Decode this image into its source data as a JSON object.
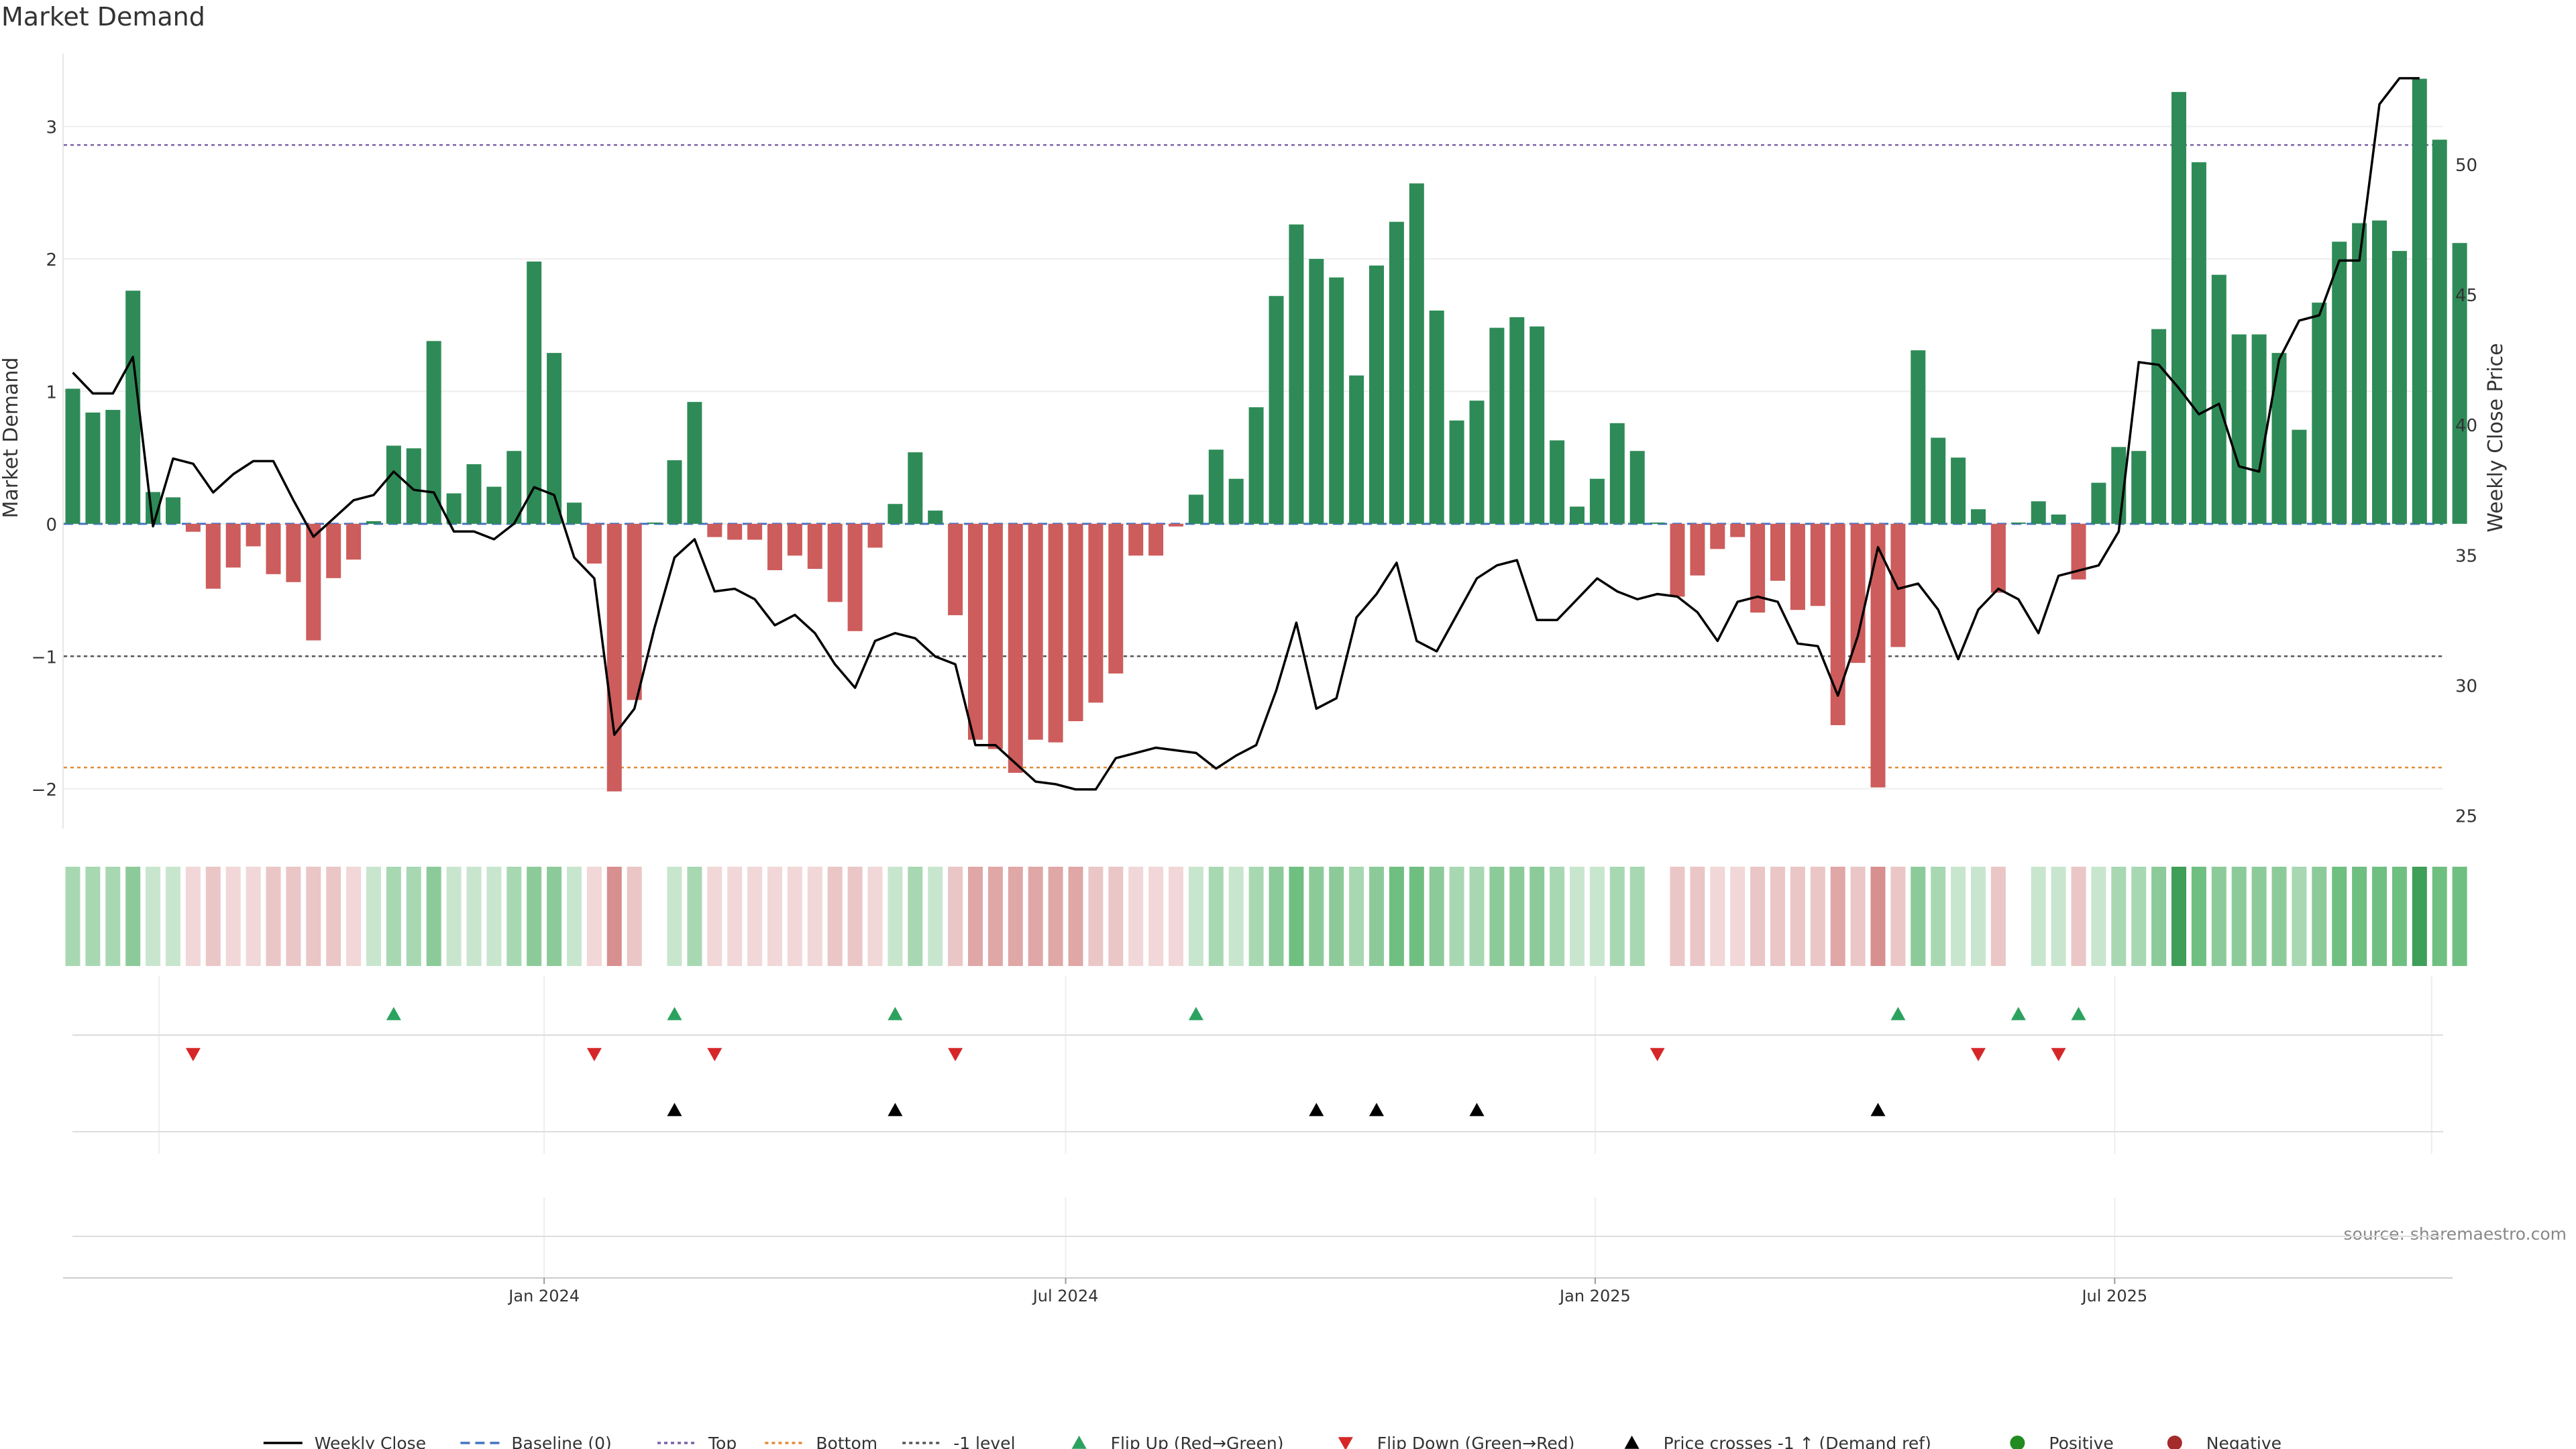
{
  "chart_data": {
    "type": "bar",
    "title": "Market Demand",
    "ylabel_left": "Market Demand",
    "ylabel_right": "Weekly Close Price",
    "source": "source: sharemaestro.com",
    "left_axis": {
      "ylim": [
        -2.3,
        3.6
      ],
      "ticks": [
        -2,
        -1,
        0,
        1,
        2,
        3
      ],
      "tick_labels": [
        "−2",
        "−1",
        "0",
        "1",
        "2",
        "3"
      ]
    },
    "right_axis": {
      "ylim": [
        24.5,
        54.5
      ],
      "ticks": [
        25,
        30,
        35,
        40,
        45,
        50
      ],
      "tick_labels": [
        "25",
        "30",
        "35",
        "40",
        "45",
        "50"
      ]
    },
    "reference_lines": {
      "top": 2.86,
      "bottom": -1.84,
      "minus_one": -1,
      "baseline": 0
    },
    "x_ticks": [
      {
        "label": "Jan 2024",
        "week": 23.5
      },
      {
        "label": "Jul 2024",
        "week": 49.5
      },
      {
        "label": "Jan 2025",
        "week": 75.9
      },
      {
        "label": "Jul 2025",
        "week": 101.8
      }
    ],
    "demand": [
      1.02,
      0.84,
      0.86,
      1.76,
      0.24,
      0.2,
      -0.06,
      -0.49,
      -0.33,
      -0.17,
      -0.38,
      -0.44,
      -0.88,
      -0.41,
      -0.27,
      0.02,
      0.59,
      0.57,
      1.38,
      0.23,
      0.45,
      0.28,
      0.55,
      1.98,
      1.29,
      0.16,
      -0.3,
      -2.02,
      -1.33,
      0.01,
      0.48,
      0.92,
      -0.1,
      -0.12,
      -0.12,
      -0.35,
      -0.24,
      -0.34,
      -0.59,
      -0.81,
      -0.18,
      0.15,
      0.54,
      0.1,
      -0.69,
      -1.63,
      -1.7,
      -1.88,
      -1.63,
      -1.65,
      -1.49,
      -1.35,
      -1.13,
      -0.24,
      -0.24,
      -0.02,
      0.22,
      0.56,
      0.34,
      0.88,
      1.72,
      2.26,
      2.0,
      1.86,
      1.12,
      1.95,
      2.28,
      2.57,
      1.61,
      0.78,
      0.93,
      1.48,
      1.56,
      1.49,
      0.63,
      0.13,
      0.34,
      0.76,
      0.55,
      0.01,
      -0.55,
      -0.39,
      -0.19,
      -0.1,
      -0.67,
      -0.43,
      -0.65,
      -0.62,
      -1.52,
      -1.05,
      -1.99,
      -0.93,
      1.31,
      0.65,
      0.5,
      0.11,
      -0.52,
      0.01,
      0.17,
      0.07,
      -0.42,
      0.31,
      0.58,
      0.55,
      1.47,
      3.26,
      2.73,
      1.88,
      1.43,
      1.43,
      1.29,
      0.71,
      1.67,
      2.13,
      2.27,
      2.29,
      2.06,
      3.36,
      2.9,
      2.12
    ],
    "weekly_close": [
      42.0,
      41.2,
      41.2,
      42.6,
      36.1,
      38.7,
      38.5,
      37.4,
      38.1,
      38.6,
      38.6,
      37.1,
      35.7,
      36.4,
      37.1,
      37.3,
      38.2,
      37.5,
      37.4,
      35.9,
      35.9,
      35.6,
      36.2,
      37.6,
      37.3,
      34.9,
      34.1,
      28.1,
      29.1,
      32.2,
      34.9,
      35.6,
      33.6,
      33.7,
      33.3,
      32.3,
      32.7,
      32.0,
      30.8,
      29.9,
      31.7,
      32.0,
      31.8,
      31.1,
      30.8,
      27.7,
      27.7,
      27.0,
      26.3,
      26.2,
      26.0,
      26.0,
      27.2,
      27.4,
      27.6,
      27.5,
      27.4,
      26.8,
      27.3,
      27.7,
      29.8,
      32.4,
      29.1,
      29.5,
      32.6,
      33.5,
      34.7,
      31.7,
      31.3,
      32.7,
      34.1,
      34.6,
      34.8,
      32.5,
      32.5,
      33.3,
      34.1,
      33.6,
      33.3,
      33.5,
      33.4,
      32.8,
      31.7,
      33.2,
      33.4,
      33.2,
      31.6,
      31.5,
      29.6,
      31.9,
      35.3,
      33.7,
      33.9,
      32.9,
      31.0,
      32.9,
      33.7,
      33.3,
      32.0,
      34.2,
      34.4,
      34.6,
      35.9,
      42.4,
      42.3,
      41.4,
      40.4,
      40.8,
      38.4,
      38.2,
      42.5,
      44.0,
      44.2,
      46.3,
      46.3,
      52.3,
      53.3,
      53.3
    ],
    "heat_strip": {
      "positive_colors": [
        "#c8e6ce",
        "#a8d8b2",
        "#8ccb99",
        "#6fbf81",
        "#3f9e58"
      ],
      "negative_colors": [
        "#f1d7d7",
        "#eac6c6",
        "#e0a7a7",
        "#d88f8f"
      ]
    },
    "flip_up_weeks": [
      16,
      30,
      41,
      56,
      91,
      97,
      100
    ],
    "flip_down_weeks": [
      6,
      26,
      32,
      44,
      79,
      95,
      99
    ],
    "price_cross_weeks": [
      30,
      41,
      62,
      65,
      70,
      90
    ],
    "colors": {
      "positive": "#2e8b57",
      "negative": "#cd5c5c",
      "price": "#000000",
      "baseline": "#4472c4",
      "top": "#7b61a8",
      "bottom": "#e08c3a",
      "minus_one": "#555555",
      "flip_up": "#2ca25f",
      "flip_down": "#d62728",
      "cross": "#000000"
    },
    "legend": [
      {
        "label": "Weekly Close",
        "kind": "line-solid",
        "color": "#000000"
      },
      {
        "label": "Baseline (0)",
        "kind": "line-dash",
        "color": "#4472c4"
      },
      {
        "label": "Top",
        "kind": "line-dot",
        "color": "#7b61a8"
      },
      {
        "label": "Bottom",
        "kind": "line-dot",
        "color": "#e08c3a"
      },
      {
        "label": "-1 level",
        "kind": "line-dot",
        "color": "#555555"
      },
      {
        "label": "Flip Up (Red→Green)",
        "kind": "tri-up",
        "color": "#2ca25f"
      },
      {
        "label": "Flip Down (Green→Red)",
        "kind": "tri-down",
        "color": "#d62728"
      },
      {
        "label": "Price crosses -1 ↑ (Demand ref)",
        "kind": "tri-up",
        "color": "#000000"
      },
      {
        "label": "Positive",
        "kind": "dot",
        "color": "#228b22"
      },
      {
        "label": "Negative",
        "kind": "dot",
        "color": "#a52a2a"
      }
    ]
  }
}
